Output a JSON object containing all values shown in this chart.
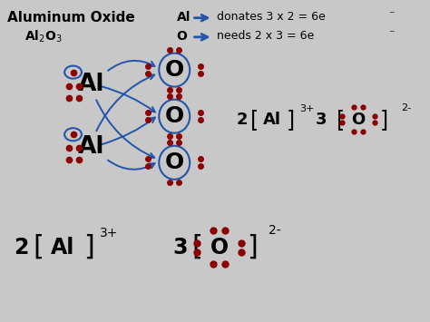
{
  "bg_color": "#c8c8c8",
  "white_bg": "#e8e8e8",
  "dot_color": "#8b0000",
  "arrow_color": "#2255aa",
  "title": "Aluminum Oxide",
  "formula_parts": [
    "Al",
    "2",
    "O",
    "3"
  ],
  "al_label": "Al",
  "o_label": "O",
  "donate_text": "donates 3 x 2 = 6e",
  "needs_text": "needs 2 x 3 = 6e",
  "figsize": [
    4.74,
    3.55
  ],
  "dpi": 100
}
